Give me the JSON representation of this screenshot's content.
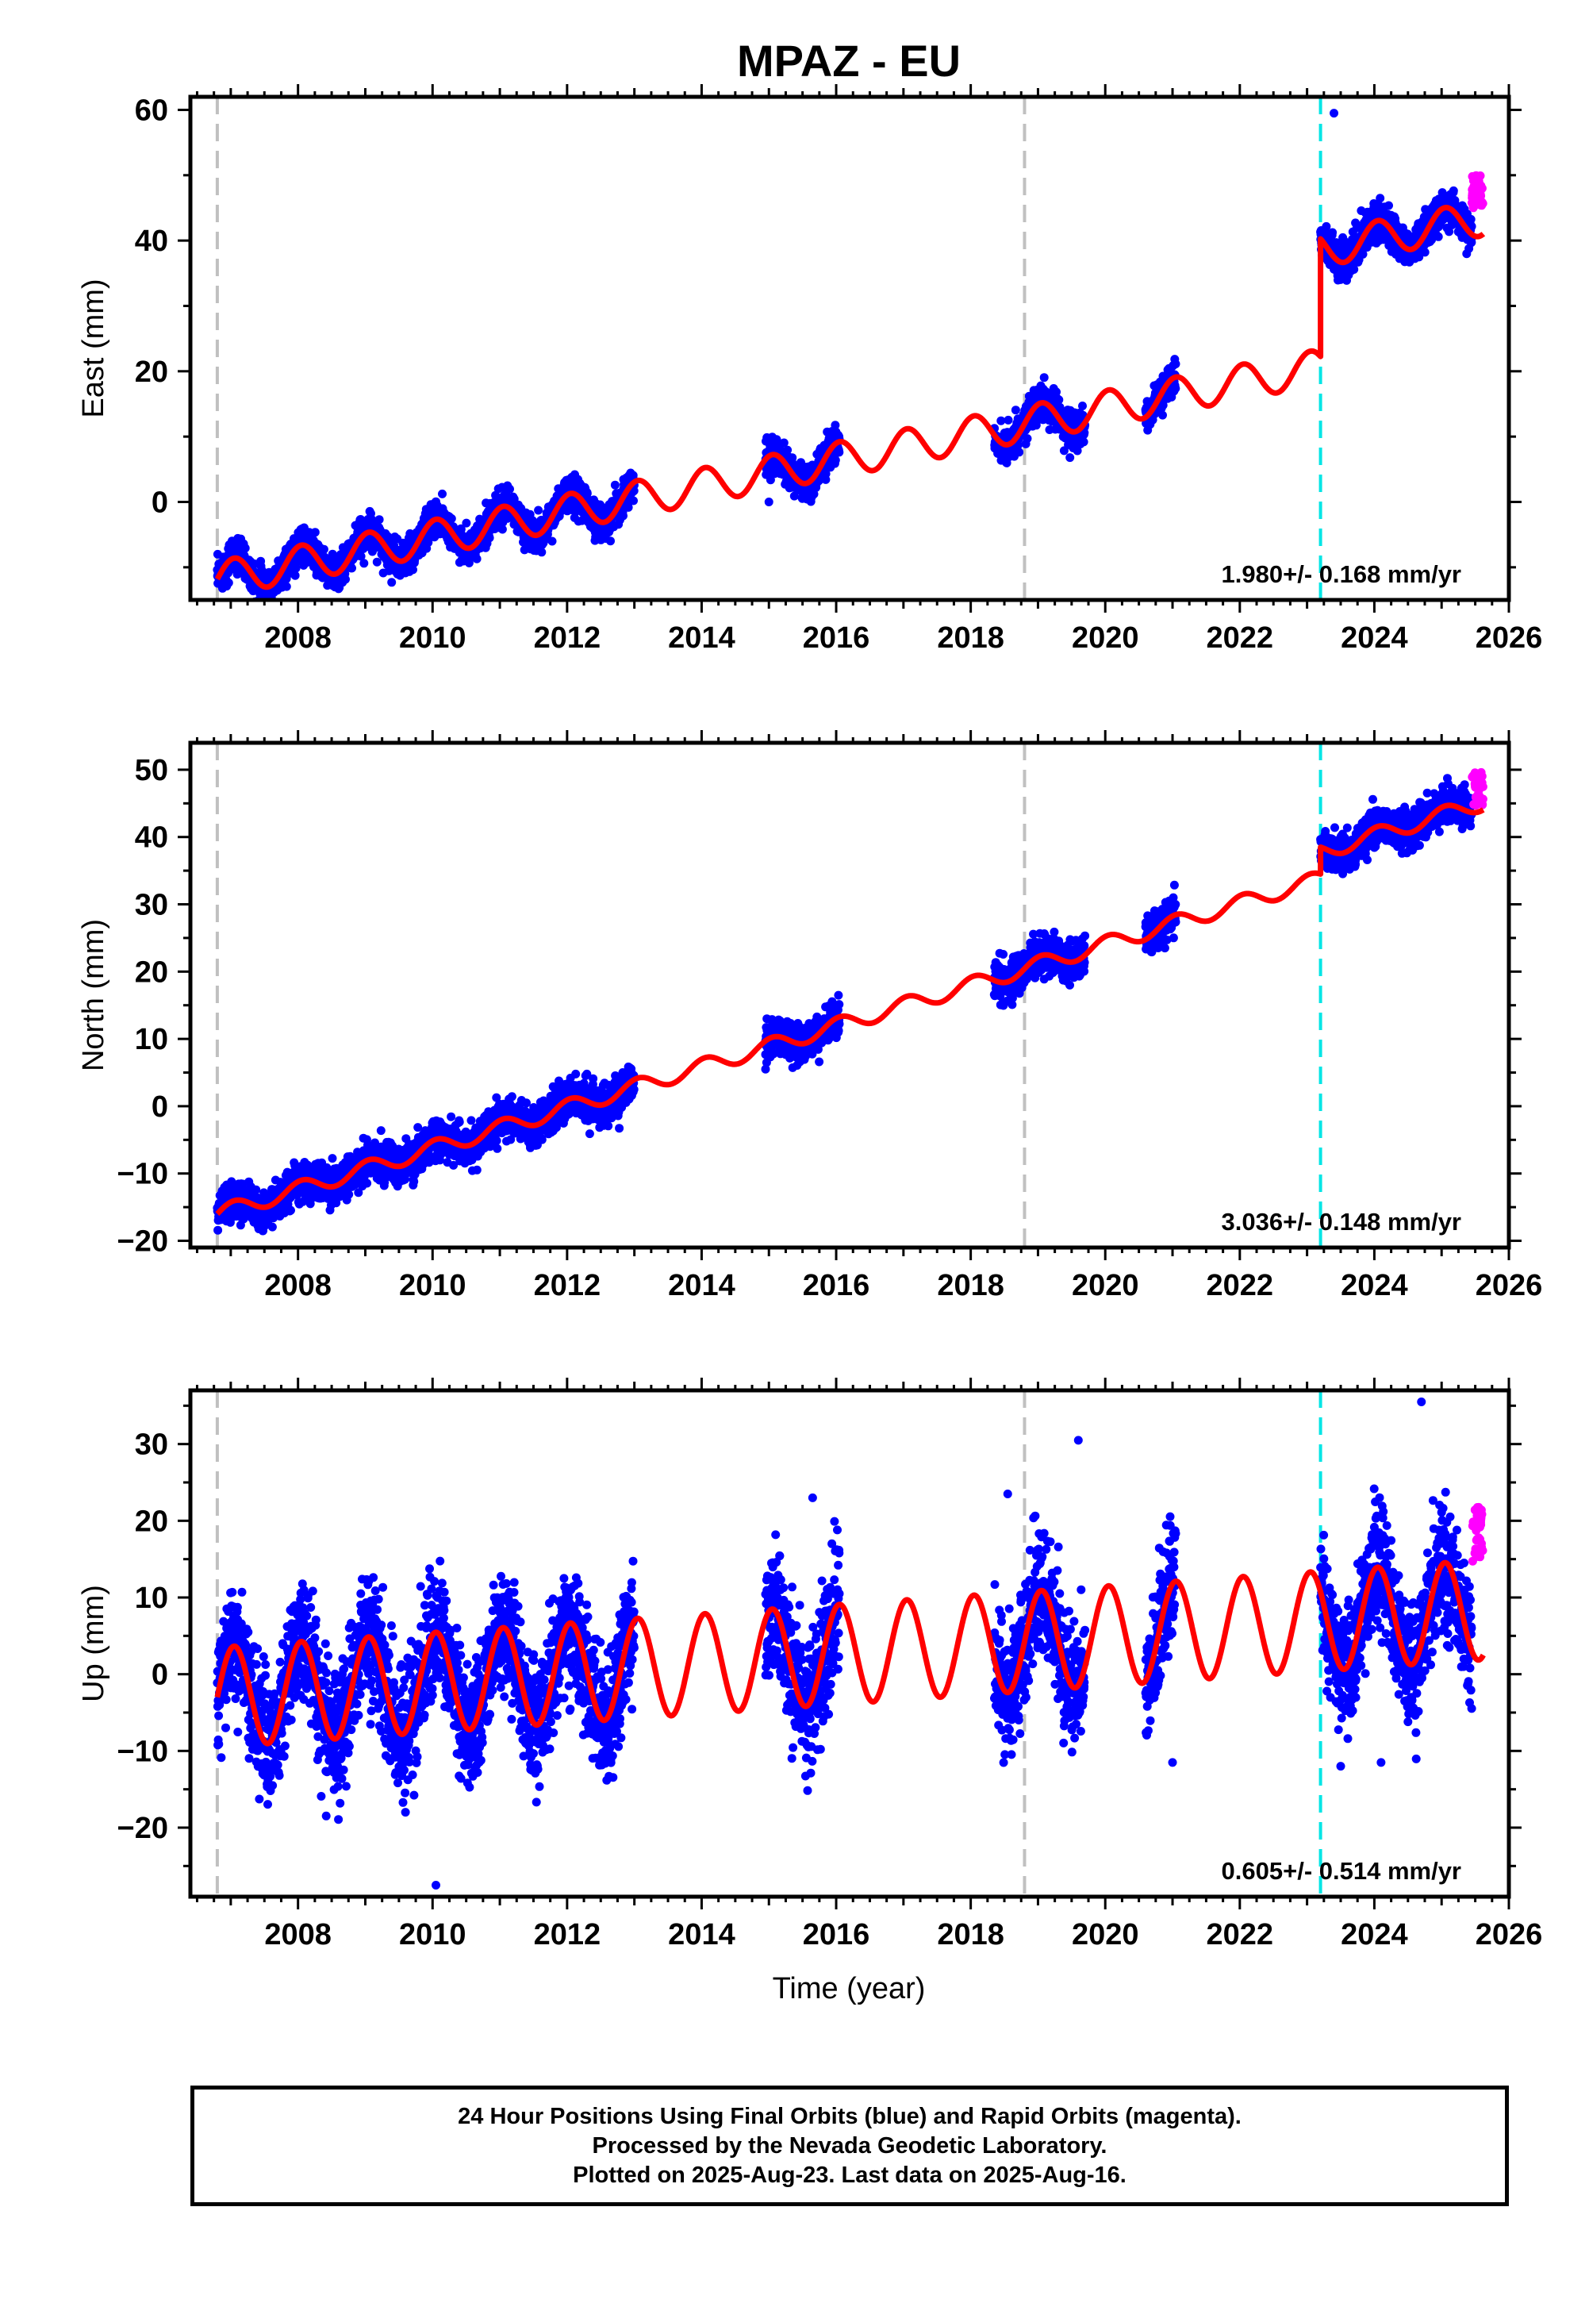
{
  "title": "MPAZ - EU",
  "xlabel": "Time (year)",
  "footer": {
    "line1": "24 Hour Positions Using Final Orbits (blue) and Rapid Orbits (magenta).",
    "line2": "Processed by the Nevada Geodetic Laboratory.",
    "line3": "Plotted on 2025-Aug-23. Last data on 2025-Aug-16."
  },
  "colors": {
    "final_orbits": "#0000ff",
    "rapid_orbits": "#ff00ff",
    "model": "#ff0000",
    "equipment_change": "#c0c0c0",
    "earthquake_offset": "#00e5e5"
  },
  "chart_data": [
    {
      "type": "scatter",
      "component": "east",
      "ylabel": "East (mm)",
      "xlim": [
        2006.4,
        2026.0
      ],
      "ylim": [
        -15,
        62
      ],
      "yticks": [
        0,
        20,
        40,
        60
      ],
      "xticks": [
        2008,
        2010,
        2012,
        2014,
        2016,
        2018,
        2020,
        2022,
        2024,
        2026
      ],
      "grid": false,
      "velocity_label": "1.980+/- 0.168 mm/yr",
      "model": {
        "start": 2006.8,
        "start_value": -11.8,
        "rate": 1.98,
        "amp": 2.7,
        "phase": 0.0,
        "offset_epoch": 2023.2,
        "offset": 18.0
      },
      "data_segments": [
        [
          2006.8,
          2013.0
        ],
        [
          2014.95,
          2016.05
        ],
        [
          2018.35,
          2019.7
        ],
        [
          2020.6,
          2021.05
        ],
        [
          2023.2,
          2025.45
        ]
      ],
      "scatter": 1.3,
      "outliers": [
        [
          2023.4,
          59.5
        ],
        [
          2015.0,
          0.0
        ]
      ],
      "rapid_orbits": {
        "range": [
          2025.45,
          2025.62
        ],
        "center": 47.5,
        "spread": 2.5
      },
      "vlines": [
        {
          "x": 2006.8,
          "kind": "equipment_change"
        },
        {
          "x": 2018.8,
          "kind": "equipment_change"
        },
        {
          "x": 2023.2,
          "kind": "earthquake_offset"
        }
      ]
    },
    {
      "type": "scatter",
      "component": "north",
      "ylabel": "North (mm)",
      "xlim": [
        2006.4,
        2026.0
      ],
      "ylim": [
        -21,
        54
      ],
      "yticks": [
        -20,
        -10,
        0,
        10,
        20,
        30,
        40,
        50
      ],
      "xticks": [
        2008,
        2010,
        2012,
        2014,
        2016,
        2018,
        2020,
        2022,
        2024,
        2026
      ],
      "grid": false,
      "velocity_label": "3.036+/- 0.148 mm/yr",
      "model": {
        "start": 2006.8,
        "start_value": -16.0,
        "rate": 3.036,
        "amp": 1.2,
        "phase": 0.0,
        "offset_epoch": 2023.2,
        "offset": 4.0
      },
      "data_segments": [
        [
          2006.8,
          2013.0
        ],
        [
          2014.95,
          2016.05
        ],
        [
          2018.35,
          2019.7
        ],
        [
          2020.6,
          2021.05
        ],
        [
          2023.2,
          2025.45
        ]
      ],
      "scatter": 1.4,
      "outliers": [
        [
          2014.95,
          5.5
        ]
      ],
      "rapid_orbits": {
        "range": [
          2025.45,
          2025.62
        ],
        "center": 47.0,
        "spread": 2.8
      },
      "vlines": [
        {
          "x": 2006.8,
          "kind": "equipment_change"
        },
        {
          "x": 2018.8,
          "kind": "equipment_change"
        },
        {
          "x": 2023.2,
          "kind": "earthquake_offset"
        }
      ]
    },
    {
      "type": "scatter",
      "component": "up",
      "ylabel": "Up (mm)",
      "xlim": [
        2006.4,
        2026.0
      ],
      "ylim": [
        -29,
        37
      ],
      "yticks": [
        -20,
        -10,
        0,
        10,
        20,
        30
      ],
      "xticks": [
        2008,
        2010,
        2012,
        2014,
        2016,
        2018,
        2020,
        2022,
        2024,
        2026
      ],
      "grid": false,
      "velocity_label": "0.605+/- 0.514 mm/yr",
      "model": {
        "start": 2006.8,
        "start_value": -3.0,
        "rate": 0.605,
        "amp": 6.5,
        "phase": 0.0,
        "offset_epoch": 2023.2,
        "offset": 0.0
      },
      "data_segments": [
        [
          2006.8,
          2013.0
        ],
        [
          2014.95,
          2016.05
        ],
        [
          2018.35,
          2019.7
        ],
        [
          2020.6,
          2021.05
        ],
        [
          2023.2,
          2025.45
        ]
      ],
      "scatter": 4.0,
      "outliers": [
        [
          2010.05,
          -27.5
        ],
        [
          2024.7,
          35.5
        ],
        [
          2019.6,
          30.5
        ],
        [
          2018.55,
          23.5
        ],
        [
          2015.65,
          23.0
        ],
        [
          2023.5,
          -12.0
        ],
        [
          2024.1,
          -11.5
        ],
        [
          2021.0,
          -11.5
        ]
      ],
      "rapid_orbits": {
        "range": [
          2025.45,
          2025.62
        ],
        "center": 18.0,
        "spread": 4.0
      },
      "vlines": [
        {
          "x": 2006.8,
          "kind": "equipment_change"
        },
        {
          "x": 2018.8,
          "kind": "equipment_change"
        },
        {
          "x": 2023.2,
          "kind": "earthquake_offset"
        }
      ]
    }
  ]
}
